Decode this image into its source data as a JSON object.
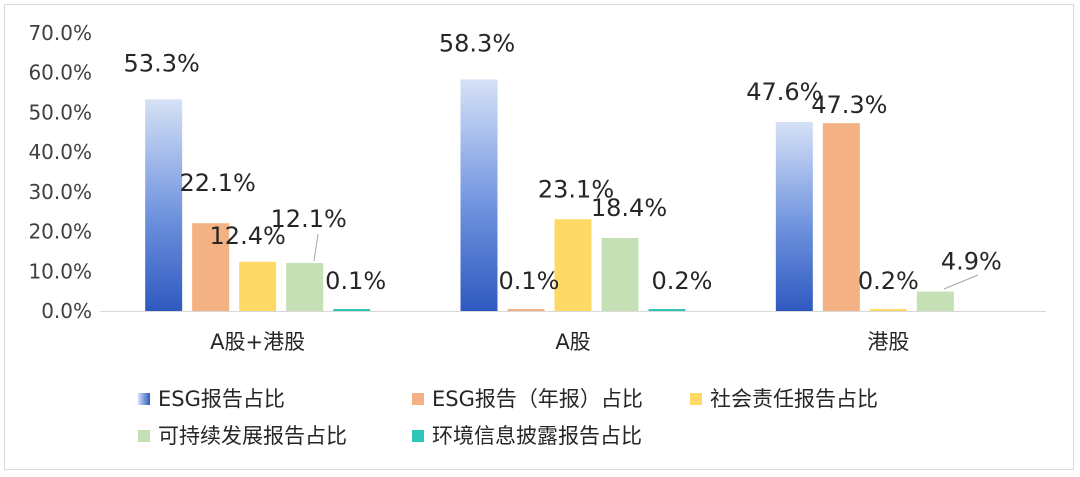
{
  "chart_data": {
    "type": "bar",
    "title": "",
    "xlabel": "",
    "ylabel": "",
    "ylim": [
      0,
      70
    ],
    "y_ticks": [
      "0.0%",
      "10.0%",
      "20.0%",
      "30.0%",
      "40.0%",
      "50.0%",
      "60.0%",
      "70.0%"
    ],
    "grid": false,
    "legend_position": "bottom",
    "categories": [
      "A股+港股",
      "A股",
      "港股"
    ],
    "series": [
      {
        "name": "ESG报告占比",
        "values": [
          53.3,
          58.3,
          47.6
        ],
        "labels": [
          "53.3%",
          "58.3%",
          "47.6%"
        ],
        "color": "#3a62c5"
      },
      {
        "name": "ESG报告（年报）占比",
        "values": [
          22.1,
          0.1,
          47.3
        ],
        "labels": [
          "22.1%",
          "0.1%",
          "47.3%"
        ],
        "color": "#f4b183"
      },
      {
        "name": "社会责任报告占比",
        "values": [
          12.4,
          23.1,
          0.2
        ],
        "labels": [
          "12.4%",
          "23.1%",
          "0.2%"
        ],
        "color": "#ffd966"
      },
      {
        "name": "可持续发展报告占比",
        "values": [
          12.1,
          18.4,
          4.9
        ],
        "labels": [
          "12.1%",
          "18.4%",
          "4.9%"
        ],
        "color": "#c5e0b4"
      },
      {
        "name": "环境信息披露报告占比",
        "values": [
          0.1,
          0.2,
          0.0
        ],
        "labels": [
          "0.1%",
          "0.2%",
          ""
        ],
        "color": "#2ec4b6"
      }
    ]
  }
}
